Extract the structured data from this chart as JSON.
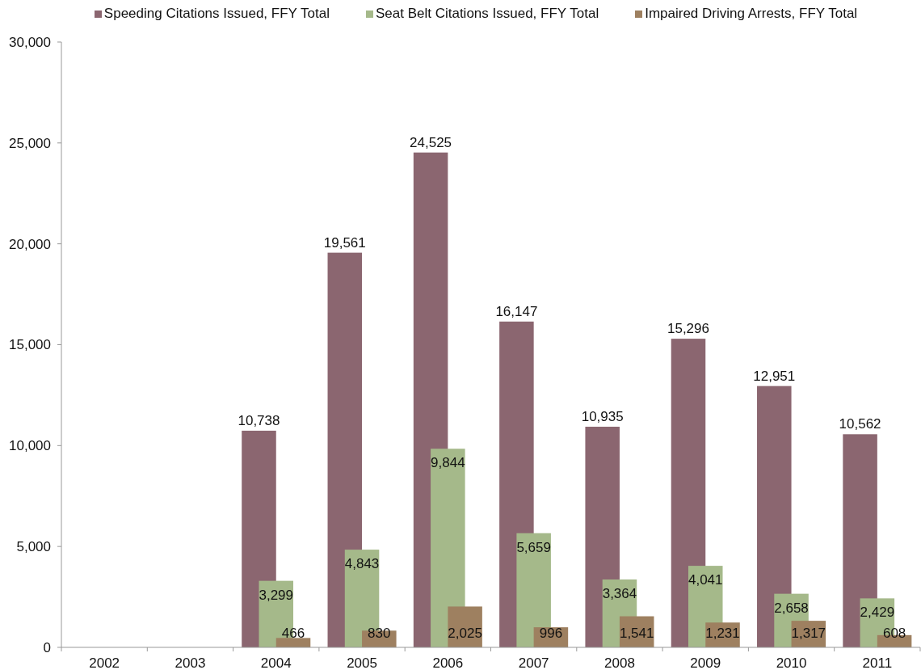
{
  "chart_data": {
    "type": "bar",
    "categories": [
      "2002",
      "2003",
      "2004",
      "2005",
      "2006",
      "2007",
      "2008",
      "2009",
      "2010",
      "2011"
    ],
    "series": [
      {
        "name": "Speeding Citations Issued, FFY Total",
        "color": "#8b6670",
        "values": [
          null,
          null,
          10738,
          19561,
          24525,
          16147,
          10935,
          15296,
          12951,
          10562
        ],
        "value_labels": [
          null,
          null,
          "10,738",
          "19,561",
          "24,525",
          "16,147",
          "10,935",
          "15,296",
          "12,951",
          "10,562"
        ]
      },
      {
        "name": "Seat Belt Citations Issued, FFY Total",
        "color": "#a5b98a",
        "values": [
          null,
          null,
          3299,
          4843,
          9844,
          5659,
          3364,
          4041,
          2658,
          2429
        ],
        "value_labels": [
          null,
          null,
          "3,299",
          "4,843",
          "9,844",
          "5,659",
          "3,364",
          "4,041",
          "2,658",
          "2,429"
        ]
      },
      {
        "name": "Impaired Driving Arrests, FFY Total",
        "color": "#9e8060",
        "values": [
          null,
          null,
          466,
          830,
          2025,
          996,
          1541,
          1231,
          1317,
          608
        ],
        "value_labels": [
          null,
          null,
          "466",
          "830",
          "2,025",
          "996",
          "1,541",
          "1,231",
          "1,317",
          "608"
        ]
      }
    ],
    "ylim": [
      0,
      30000
    ],
    "yticks": [
      0,
      {
        "value": 5000,
        "label": "5,000"
      },
      {
        "value": 10000,
        "label": "10,000"
      },
      {
        "value": 15000,
        "label": "15,000"
      },
      {
        "value": 20000,
        "label": "20,000"
      },
      {
        "value": 25000,
        "label": "25,000"
      },
      {
        "value": 30000,
        "label": "30,000"
      }
    ],
    "legend": "top"
  }
}
